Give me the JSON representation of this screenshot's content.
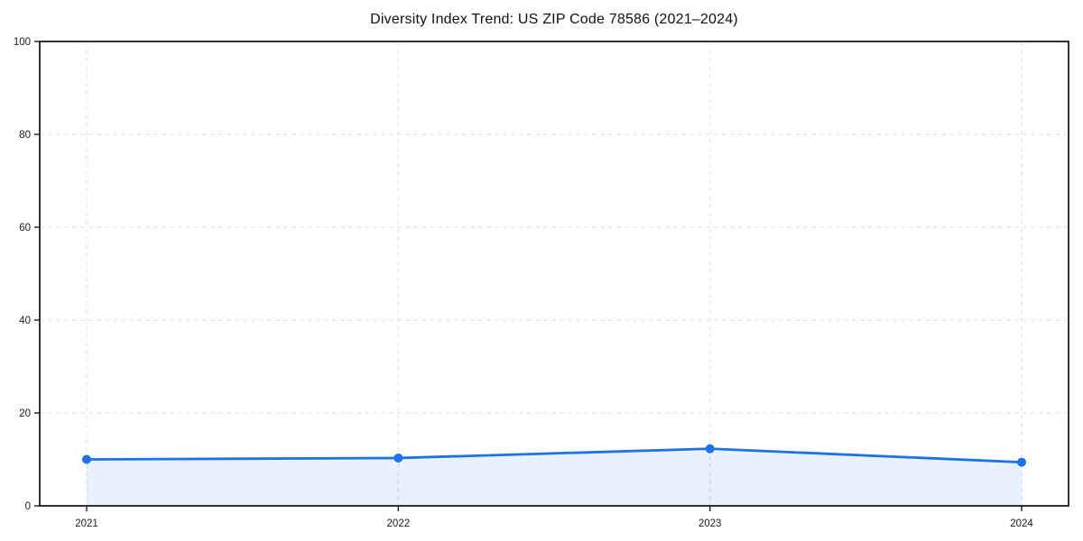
{
  "chart_data": {
    "type": "area",
    "title": "Diversity Index Trend: US ZIP Code 78586 (2021–2024)",
    "categories": [
      "2021",
      "2022",
      "2023",
      "2024"
    ],
    "series": [
      {
        "name": "Diversity Index",
        "values": [
          10.0,
          10.3,
          12.3,
          9.4
        ]
      }
    ],
    "xlabel": "",
    "ylabel": "",
    "ylim": [
      0,
      100
    ],
    "yticks": [
      0,
      20,
      40,
      60,
      80,
      100
    ],
    "grid": true,
    "grid_style": "dashed",
    "legend": false,
    "colors": {
      "line": "#1a73e8",
      "marker": "#1a73e8",
      "fill": "rgba(26,115,232,0.10)",
      "grid": "#e4e4e4",
      "spine": "#1c1c1c",
      "tick_label": "#1a1a1a",
      "background": "#ffffff"
    }
  }
}
